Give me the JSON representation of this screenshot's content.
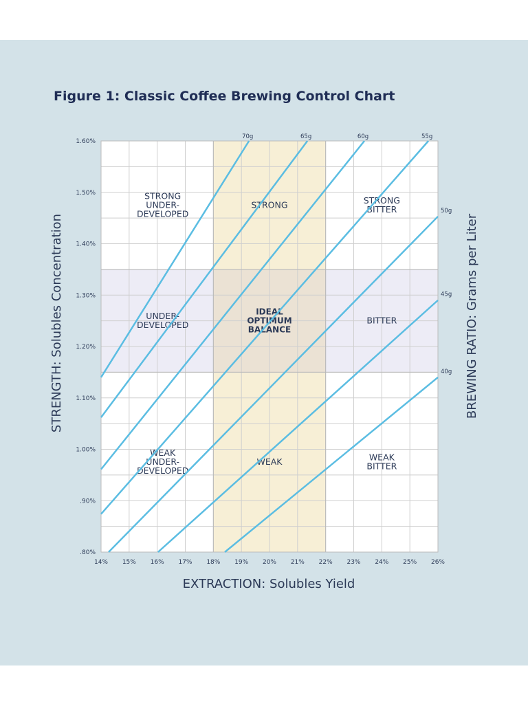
{
  "chart_data": {
    "type": "line",
    "title": "Figure 1: Classic Coffee Brewing Control Chart",
    "y_label": "STRENGTH: Solubles Concentration",
    "x_label": "EXTRACTION: Solubles Yield",
    "y2_label": "BREWING RATIO: Grams per Liter",
    "xlim": [
      14,
      26
    ],
    "ylim": [
      0.8,
      1.6
    ],
    "xticks": [
      {
        "value": 14,
        "label": "14%"
      },
      {
        "value": 15,
        "label": "15%"
      },
      {
        "value": 16,
        "label": "16%"
      },
      {
        "value": 17,
        "label": "17%"
      },
      {
        "value": 18,
        "label": "18%"
      },
      {
        "value": 19,
        "label": "19%"
      },
      {
        "value": 20,
        "label": "20%"
      },
      {
        "value": 21,
        "label": "21%"
      },
      {
        "value": 22,
        "label": "22%"
      },
      {
        "value": 23,
        "label": "23%"
      },
      {
        "value": 24,
        "label": "24%"
      },
      {
        "value": 25,
        "label": "25%"
      },
      {
        "value": 26,
        "label": "26%"
      }
    ],
    "yticks": [
      {
        "value": 0.8,
        "label": ".80%"
      },
      {
        "value": 0.9,
        "label": ".90%"
      },
      {
        "value": 1.0,
        "label": "1.00%"
      },
      {
        "value": 1.1,
        "label": "1.10%"
      },
      {
        "value": 1.2,
        "label": "1.20%"
      },
      {
        "value": 1.3,
        "label": "1.30%"
      },
      {
        "value": 1.4,
        "label": "1.40%"
      },
      {
        "value": 1.5,
        "label": "1.50%"
      },
      {
        "value": 1.6,
        "label": "1.60%"
      }
    ],
    "yminorticks": [
      0.85,
      0.95,
      1.05,
      1.15,
      1.25,
      1.35,
      1.45,
      1.55
    ],
    "grid": true,
    "ideal_x": [
      18,
      22
    ],
    "ideal_y": [
      1.15,
      1.35
    ],
    "zones": [
      [
        [
          "STRONG",
          "UNDER-",
          "DEVELOPED"
        ],
        [
          "STRONG"
        ],
        [
          "STRONG",
          "BITTER"
        ]
      ],
      [
        [
          "UNDER-",
          "DEVELOPED"
        ],
        [
          "IDEAL",
          "OPTIMUM",
          "BALANCE"
        ],
        [
          "BITTER"
        ]
      ],
      [
        [
          "WEAK",
          "UNDER-",
          "DEVELOPED"
        ],
        [
          "WEAK"
        ],
        [
          "WEAK",
          "BITTER"
        ]
      ]
    ],
    "series": [
      {
        "name": "70g",
        "color": "#5bbde2",
        "x": [
          14,
          19.27
        ],
        "values": [
          1.14,
          1.6
        ]
      },
      {
        "name": "65g",
        "color": "#5bbde2",
        "x": [
          14,
          21.35
        ],
        "values": [
          1.062,
          1.6
        ]
      },
      {
        "name": "60g",
        "color": "#5bbde2",
        "x": [
          14,
          23.38
        ],
        "values": [
          0.961,
          1.6
        ]
      },
      {
        "name": "55g",
        "color": "#5bbde2",
        "x": [
          14,
          25.66
        ],
        "values": [
          0.874,
          1.6
        ]
      },
      {
        "name": "50g",
        "color": "#5bbde2",
        "x": [
          14.27,
          26
        ],
        "values": [
          0.8,
          1.453
        ]
      },
      {
        "name": "45g",
        "color": "#5bbde2",
        "x": [
          16.03,
          26
        ],
        "values": [
          0.8,
          1.29
        ]
      },
      {
        "name": "40g",
        "color": "#5bbde2",
        "x": [
          18.41,
          26
        ],
        "values": [
          0.8,
          1.14
        ]
      }
    ]
  }
}
